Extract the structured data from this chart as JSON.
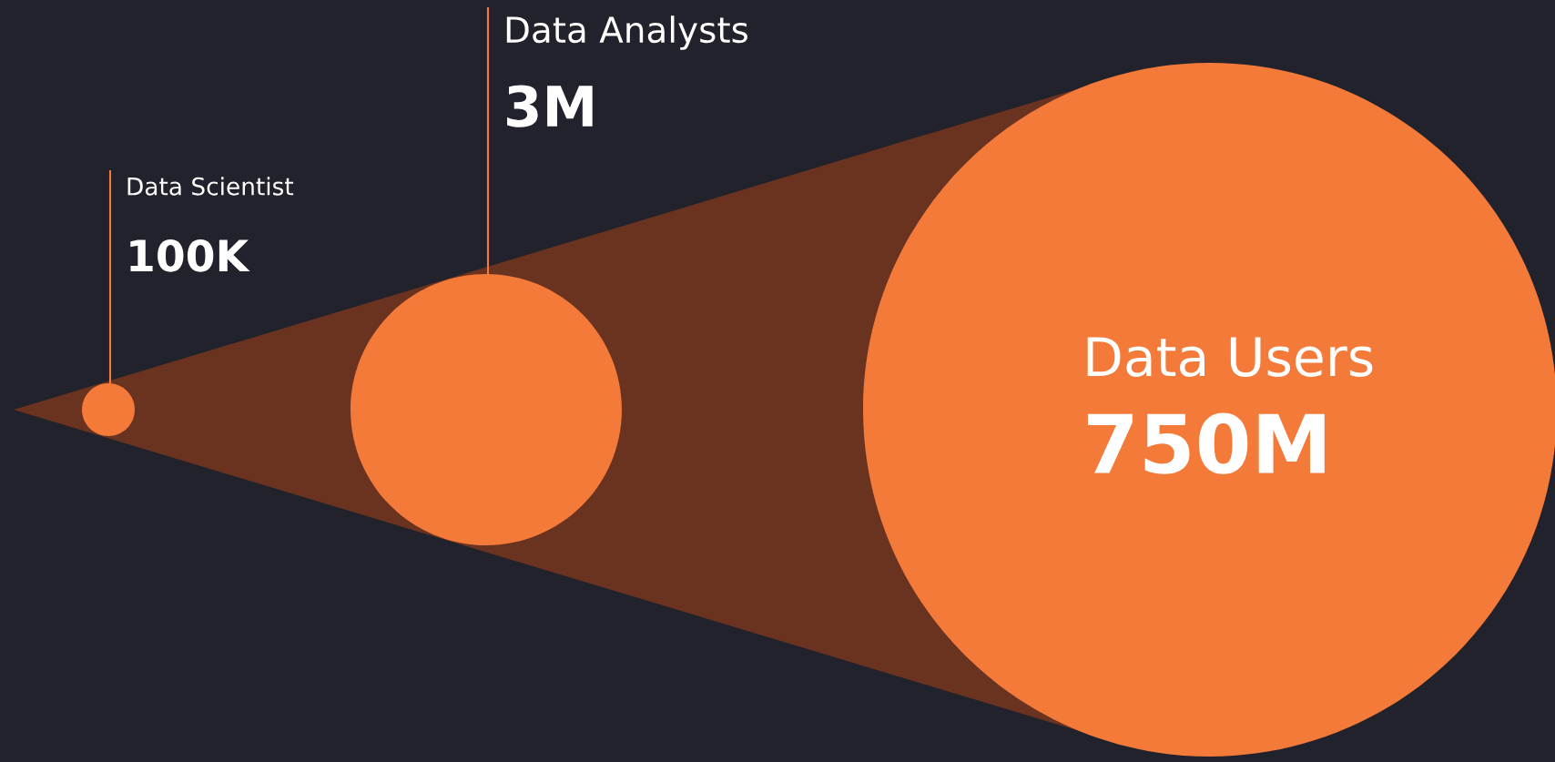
{
  "chart_data": {
    "type": "other",
    "categories": [
      "Data Scientist",
      "Data Analysts",
      "Data Users"
    ],
    "values": [
      100000,
      3000000,
      750000000
    ],
    "value_labels": [
      "100K",
      "3M",
      "750M"
    ],
    "colors": [
      "#f47a3a",
      "#f47a3a",
      "#f47a3a"
    ]
  }
}
